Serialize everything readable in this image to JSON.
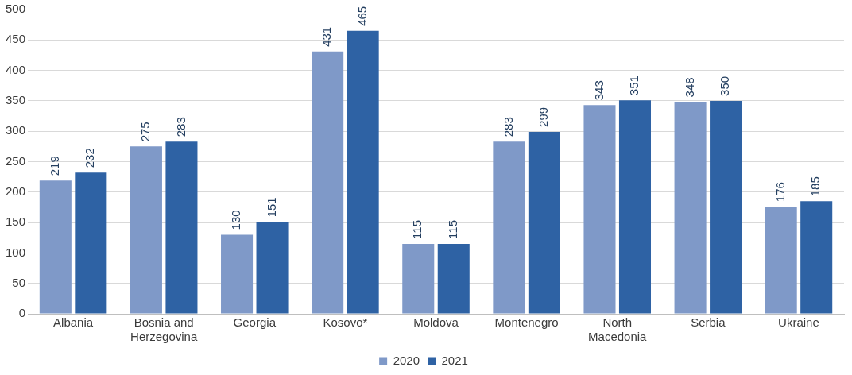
{
  "chart_data": {
    "type": "bar",
    "categories": [
      "Albania",
      "Bosnia and Herzegovina",
      "Georgia",
      "Kosovo*",
      "Moldova",
      "Montenegro",
      "North Macedonia",
      "Serbia",
      "Ukraine"
    ],
    "series": [
      {
        "name": "2020",
        "color": "#7f99c8",
        "values": [
          219,
          275,
          130,
          431,
          115,
          283,
          343,
          348,
          176
        ]
      },
      {
        "name": "2021",
        "color": "#2e62a4",
        "values": [
          232,
          283,
          151,
          465,
          115,
          299,
          351,
          350,
          185
        ]
      }
    ],
    "ylim": [
      0,
      500
    ],
    "yticks": [
      0,
      50,
      100,
      150,
      200,
      250,
      300,
      350,
      400,
      450,
      500
    ],
    "grid": "y",
    "legend": "bottom",
    "data_labels": true
  }
}
